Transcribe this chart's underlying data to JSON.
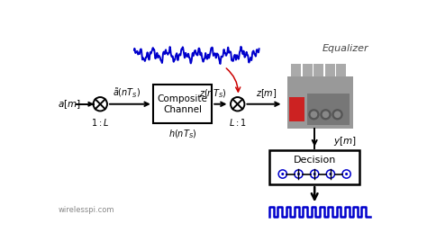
{
  "bg_color": "#ffffff",
  "fig_width": 4.74,
  "fig_height": 2.78,
  "dpi": 100,
  "black": "#000000",
  "blue": "#0000cc",
  "red": "#cc0000",
  "labels": {
    "a_m": "$a[m]$",
    "a_tilde": "$\\tilde{a}(nT_S)$",
    "z_nts": "$z(nT_S)$",
    "z_m": "$z[m]$",
    "y_m": "$y[m]$",
    "h_nts": "$h(nT_S)$",
    "upsample": "$1: L$",
    "downsample": "$L: 1$",
    "equalizer": "Equalizer",
    "decision": "Decision",
    "watermark": "wirelesspi.com"
  },
  "main_y": 0.6,
  "xlim": [
    0,
    10
  ],
  "ylim": [
    0,
    6
  ]
}
